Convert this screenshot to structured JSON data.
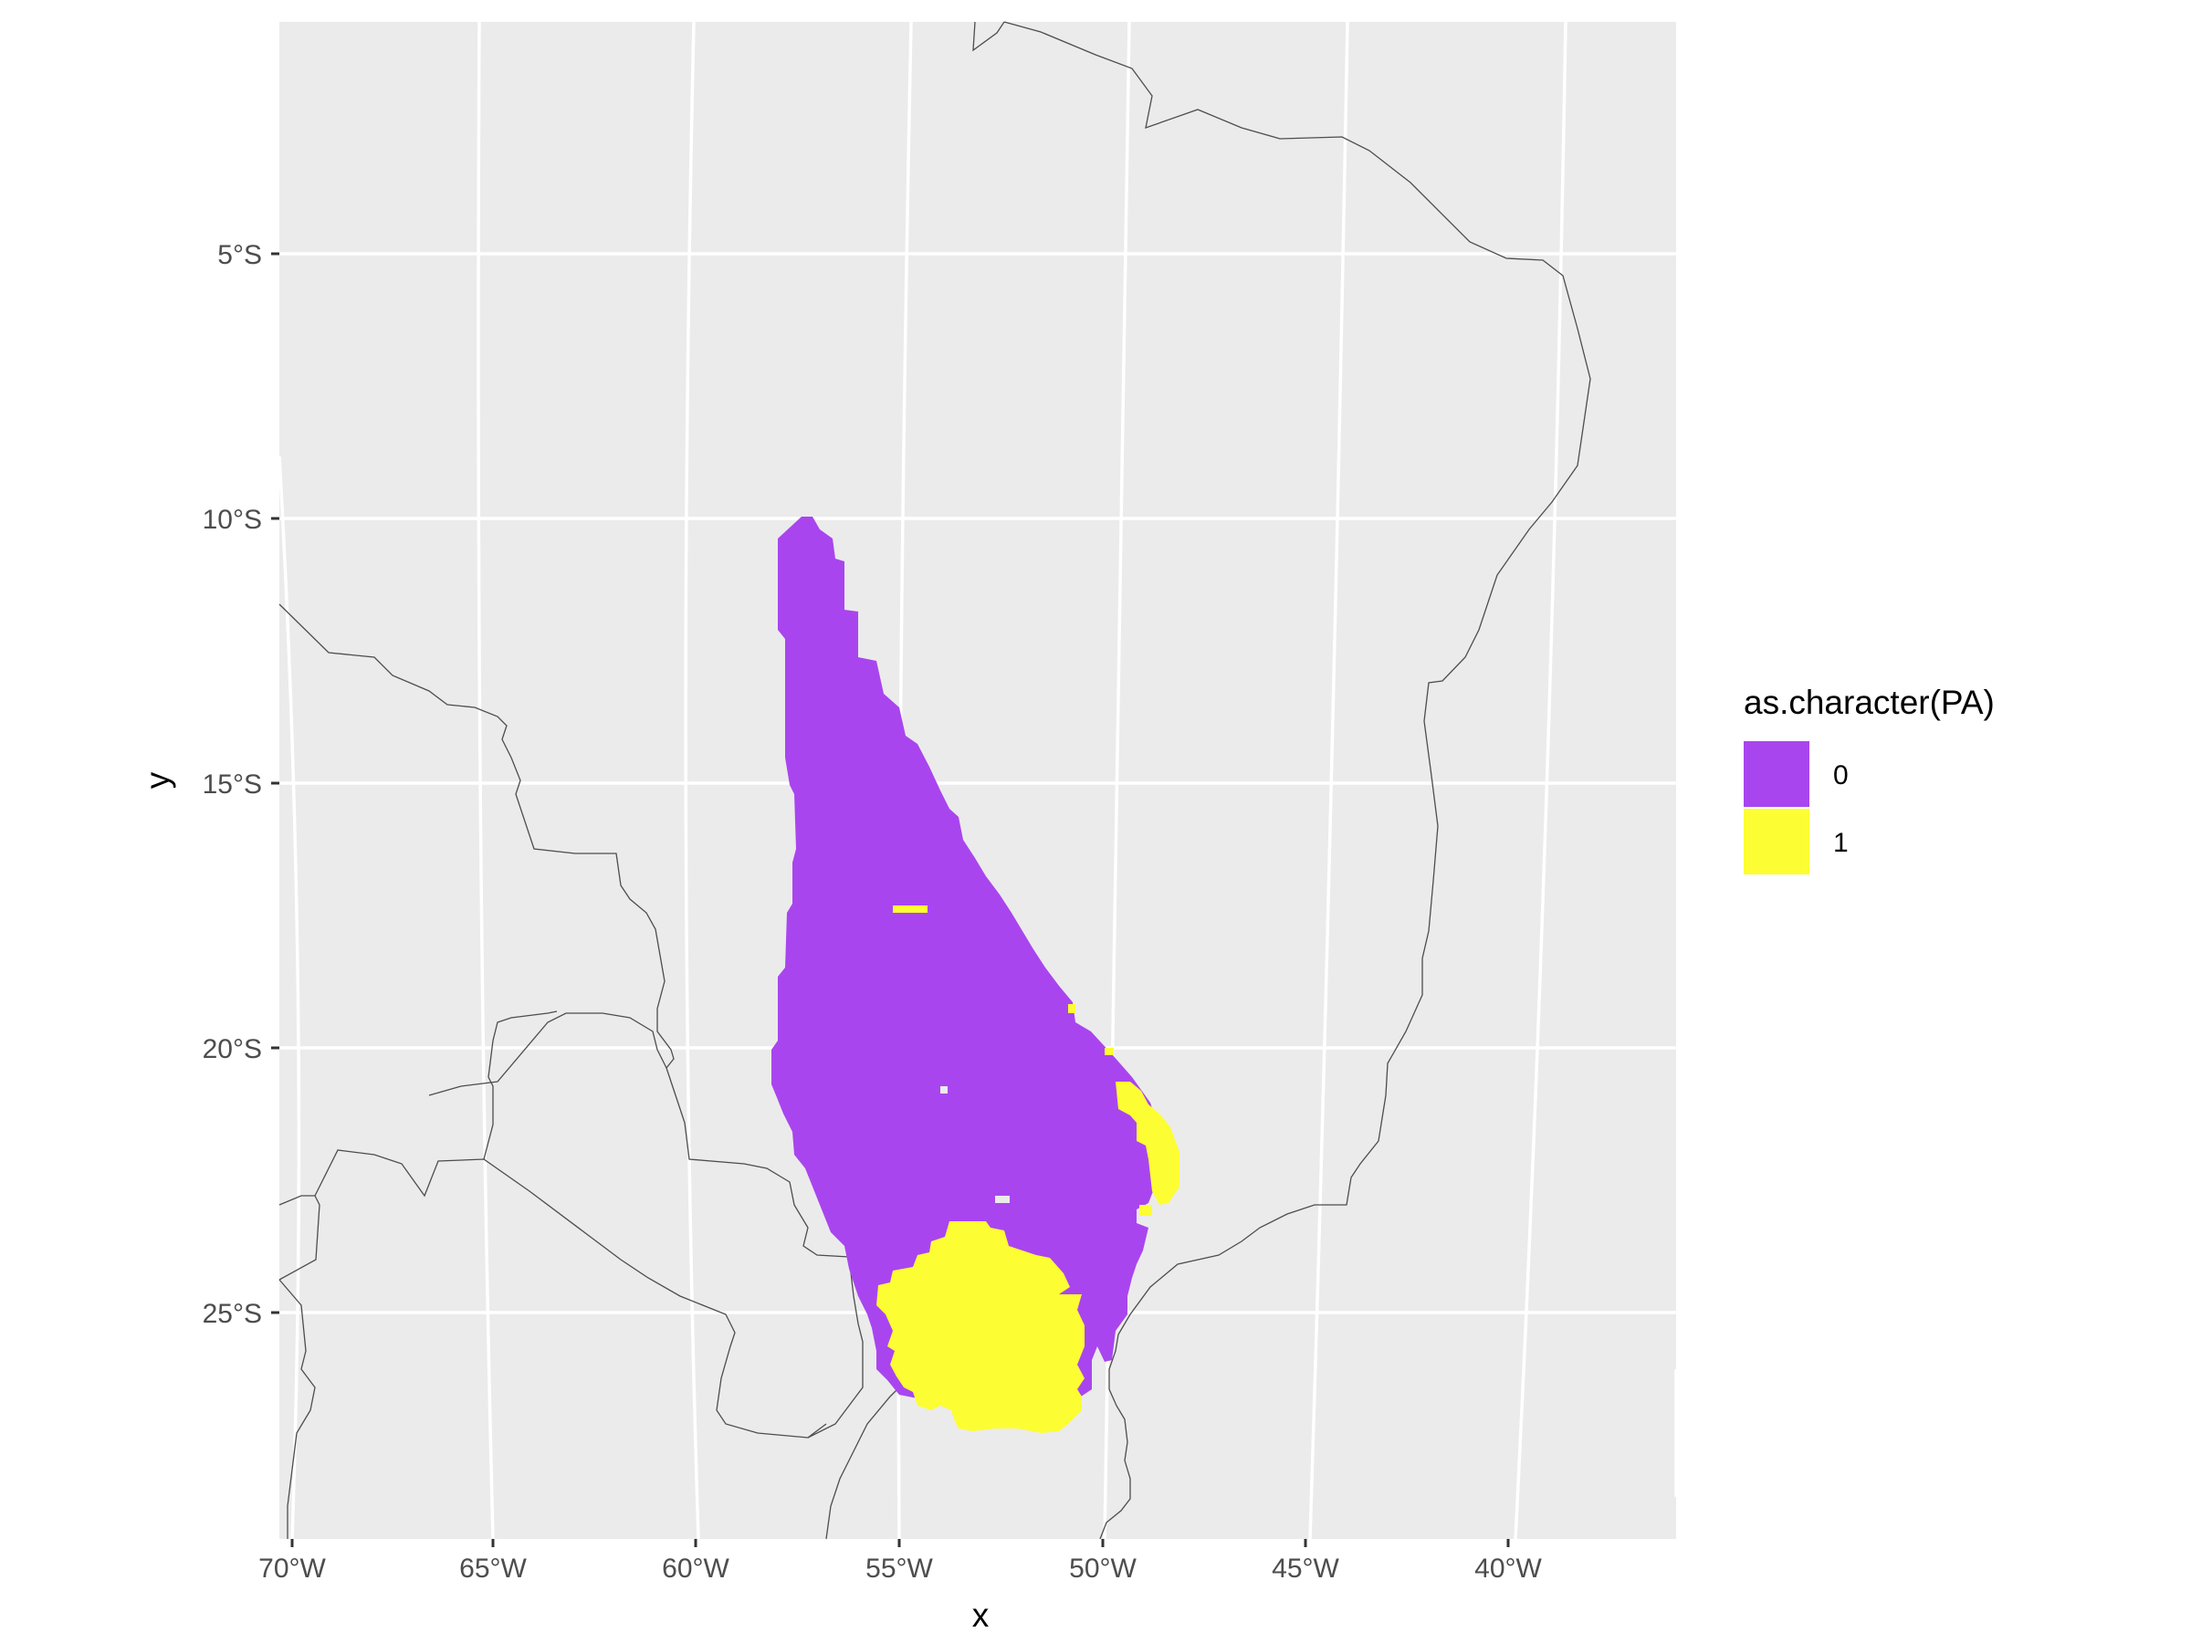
{
  "chart_data": {
    "type": "map",
    "xlabel": "x",
    "ylabel": "y",
    "x_ticks": [
      "70°W",
      "65°W",
      "60°W",
      "55°W",
      "50°W",
      "45°W",
      "40°W"
    ],
    "y_ticks": [
      "5°S",
      "10°S",
      "15°S",
      "20°S",
      "25°S"
    ],
    "legend": {
      "title": "as.character(PA)",
      "position": "right",
      "entries": [
        {
          "label": "0",
          "color": "#A945EE"
        },
        {
          "label": "1",
          "color": "#FDFD33"
        }
      ]
    },
    "colors": {
      "panel": "#EBEBEB",
      "grid": "#FFFFFF",
      "borders": "#4D4D4D"
    },
    "grid": true
  }
}
